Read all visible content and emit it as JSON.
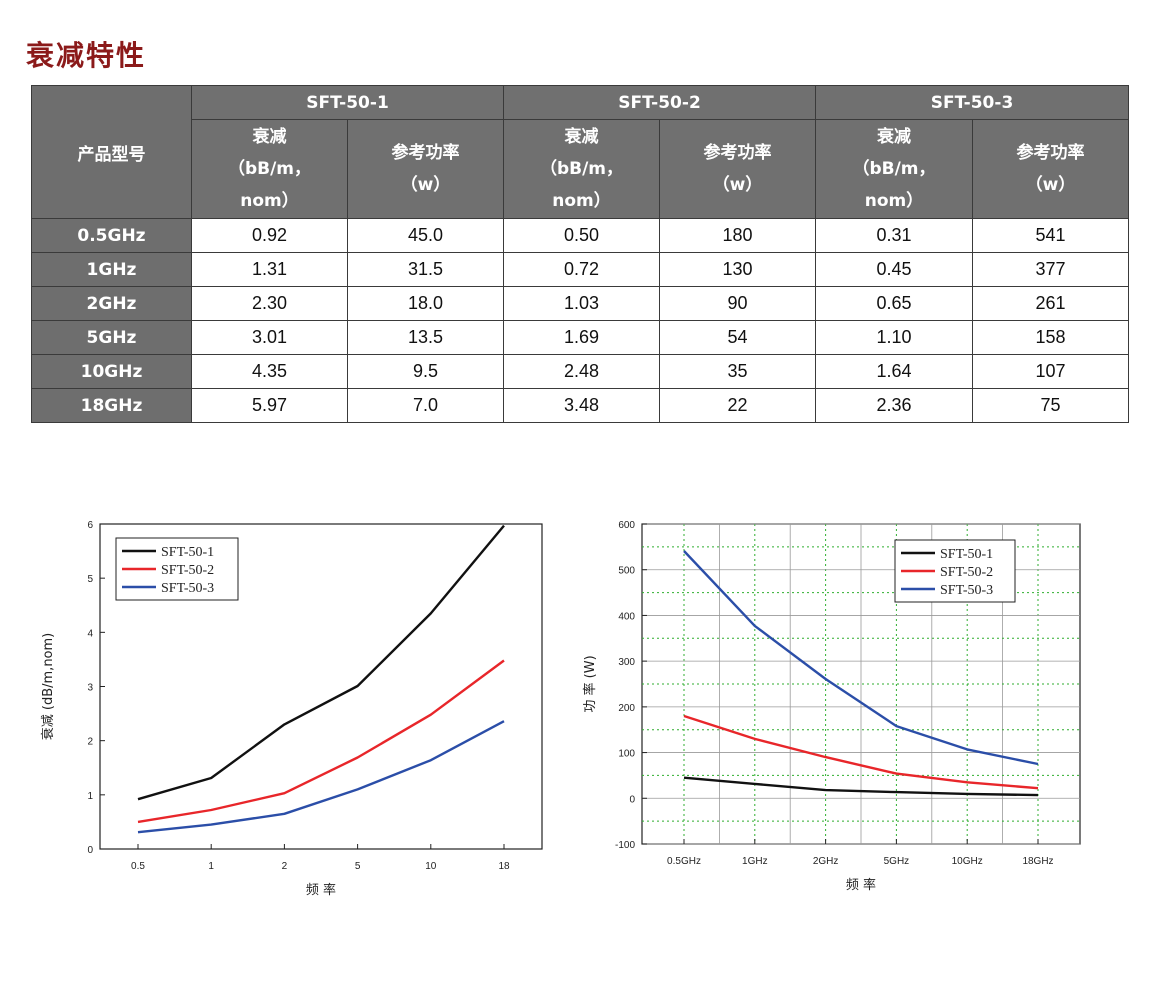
{
  "page": {
    "title": "衰减特性"
  },
  "table": {
    "corner": "产品型号",
    "models": [
      "SFT-50-1",
      "SFT-50-2",
      "SFT-50-3"
    ],
    "sub_atten": [
      "衰减",
      "（bB/m，",
      "nom）"
    ],
    "sub_power": [
      "参考功率",
      "（w）"
    ],
    "rows": [
      {
        "freq": "0.5GHz",
        "cells": [
          "0.92",
          "45.0",
          "0.50",
          "180",
          "0.31",
          "541"
        ]
      },
      {
        "freq": "1GHz",
        "cells": [
          "1.31",
          "31.5",
          "0.72",
          "130",
          "0.45",
          "377"
        ]
      },
      {
        "freq": "2GHz",
        "cells": [
          "2.30",
          "18.0",
          "1.03",
          "90",
          "0.65",
          "261"
        ]
      },
      {
        "freq": "5GHz",
        "cells": [
          "3.01",
          "13.5",
          "1.69",
          "54",
          "1.10",
          "158"
        ]
      },
      {
        "freq": "10GHz",
        "cells": [
          "4.35",
          "9.5",
          "2.48",
          "35",
          "1.64",
          "107"
        ]
      },
      {
        "freq": "18GHz",
        "cells": [
          "5.97",
          "7.0",
          "3.48",
          "22",
          "2.36",
          "75"
        ]
      }
    ]
  },
  "chart_data": [
    {
      "type": "line",
      "categories": [
        "0.5",
        "1",
        "2",
        "5",
        "10",
        "18"
      ],
      "xlabel": "频 率",
      "ylabel": "衰减 (dB/m,nom)",
      "ylim": [
        0,
        6
      ],
      "yticks": [
        0,
        1,
        2,
        3,
        4,
        5,
        6
      ],
      "grid": false,
      "legend": "top-left",
      "series": [
        {
          "name": "SFT-50-1",
          "color": "#111111",
          "values": [
            0.92,
            1.31,
            2.3,
            3.01,
            4.35,
            5.97
          ]
        },
        {
          "name": "SFT-50-2",
          "color": "#e8262a",
          "values": [
            0.5,
            0.72,
            1.03,
            1.69,
            2.48,
            3.48
          ]
        },
        {
          "name": "SFT-50-3",
          "color": "#2b4ea8",
          "values": [
            0.31,
            0.45,
            0.65,
            1.1,
            1.64,
            2.36
          ]
        }
      ]
    },
    {
      "type": "line",
      "categories": [
        "0.5GHz",
        "1GHz",
        "2GHz",
        "5GHz",
        "10GHz",
        "18GHz"
      ],
      "xlabel": "频 率",
      "ylabel": "功 率 (W)",
      "ylim": [
        -100,
        600
      ],
      "yticks": [
        -100,
        0,
        100,
        200,
        300,
        400,
        500,
        600
      ],
      "grid": true,
      "legend": "top-right",
      "series": [
        {
          "name": "SFT-50-1",
          "color": "#111111",
          "values": [
            45.0,
            31.5,
            18.0,
            13.5,
            9.5,
            7.0
          ]
        },
        {
          "name": "SFT-50-2",
          "color": "#e8262a",
          "values": [
            180,
            130,
            90,
            54,
            35,
            22
          ]
        },
        {
          "name": "SFT-50-3",
          "color": "#2b4ea8",
          "values": [
            541,
            377,
            261,
            158,
            107,
            75
          ]
        }
      ]
    }
  ]
}
